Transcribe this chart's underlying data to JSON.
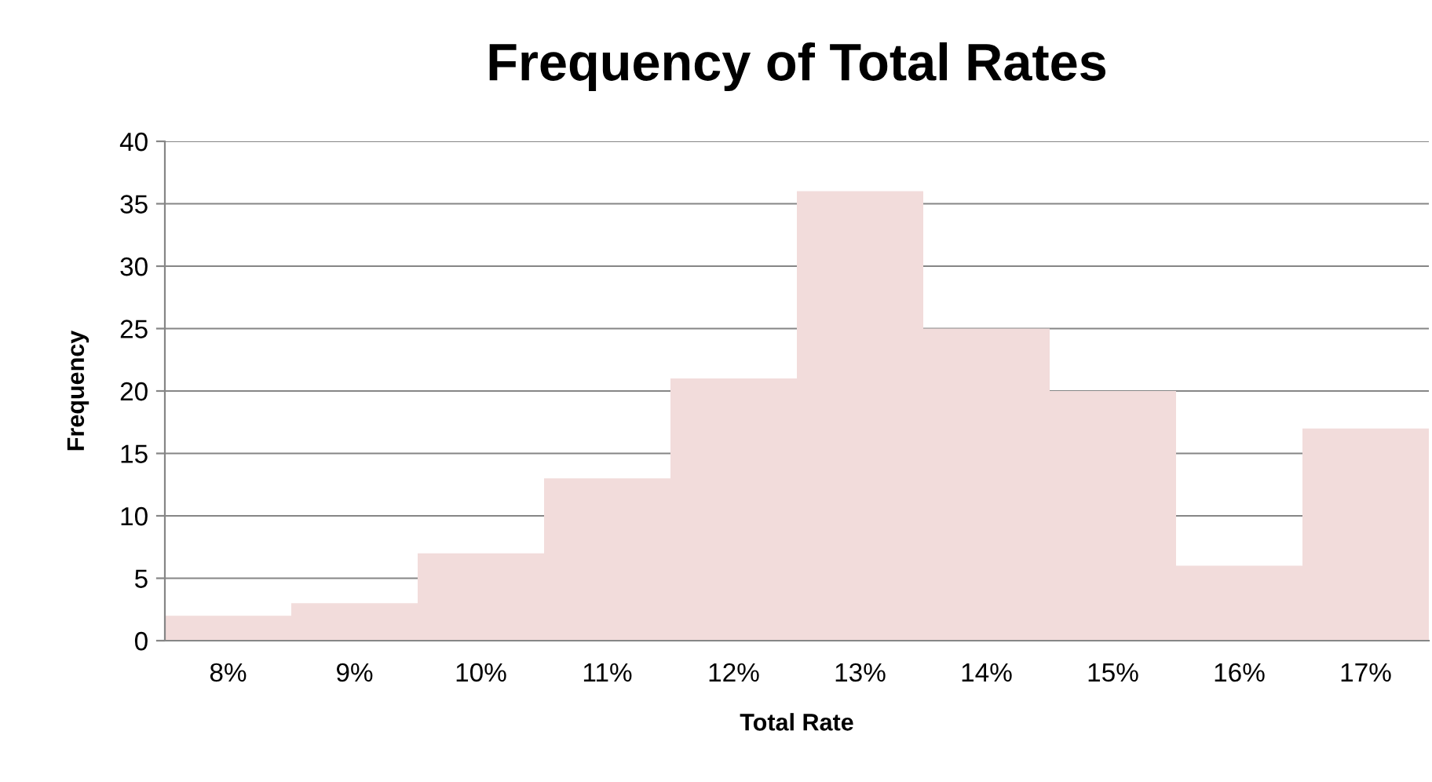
{
  "chart_data": {
    "type": "bar",
    "title": "Frequency of Total Rates",
    "xlabel": "Total Rate",
    "ylabel": "Frequency",
    "categories": [
      "8%",
      "9%",
      "10%",
      "11%",
      "12%",
      "13%",
      "14%",
      "15%",
      "16%",
      "17%"
    ],
    "values": [
      2,
      3,
      7,
      13,
      21,
      36,
      25,
      20,
      6,
      17
    ],
    "color": "#f2dcdb",
    "ylim": [
      0,
      40
    ],
    "yticks": [
      0,
      5,
      10,
      15,
      20,
      25,
      30,
      35,
      40
    ],
    "grid": "y"
  }
}
